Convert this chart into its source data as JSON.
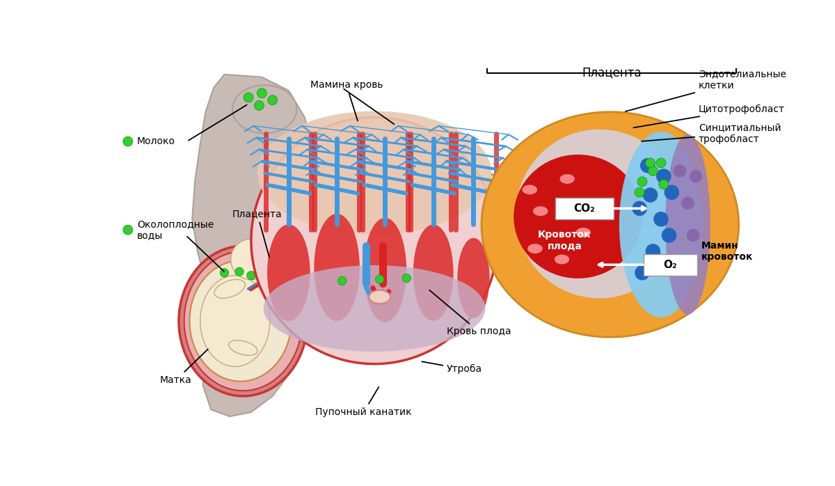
{
  "bg_color": "#ffffff",
  "title_placenta": "Плацента",
  "label_moloko": "Молоко",
  "label_okoloplodnye": "Околоплодные\nводы",
  "label_platsenta": "Плацента",
  "label_matka": "Матка",
  "label_mamina_krov": "Мамина кровь",
  "label_krov_ploda": "Кровь плода",
  "label_utshoba": "Утроба",
  "label_pupochny": "Пупочный канатик",
  "label_krovotok_ploda": "Кровоток\nплода",
  "label_mamin_krovotok": "Мамин\nкровоток",
  "label_o2": "О₂",
  "label_co2": "СО₂",
  "label_sintsitialny": "Синцитиальный\nтрофобласт",
  "label_tsitotrofoblast": "Цитотрофобласт",
  "label_endotelialny": "Эндотелиальные\nклетки",
  "green_dot_color": "#33cc33",
  "body_color": "#c8bab5",
  "uterus_outer_color": "#d48080",
  "uterus_inner_color": "#e8c8c0",
  "amnio_color": "#f0e8d0",
  "fetus_color": "#f5ead0",
  "placenta_circle_bg": "#f0d0d0",
  "placenta_circle_edge": "#cc3333",
  "red_blood_color": "#cc2222",
  "blue_vessel_color": "#4499dd",
  "orange_bg_color": "#f0a030",
  "fetal_red_color": "#cc1111",
  "maternal_blue_color": "#88ccee",
  "purple_layer_color": "#9988bb",
  "gray_layer_color": "#d0cce0",
  "bottom_lavender": "#c8b0c8"
}
